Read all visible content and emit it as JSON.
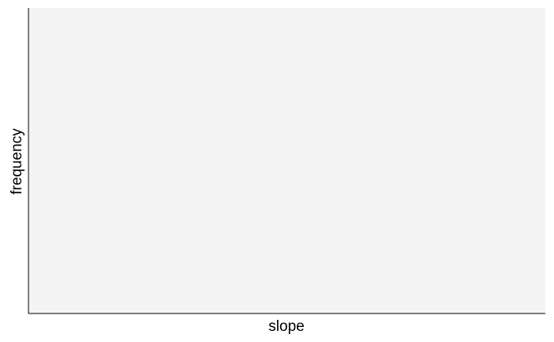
{
  "chart_data": {
    "type": "bar",
    "title": "",
    "xlabel": "slope",
    "ylabel": "frequency",
    "categories": [],
    "values": [],
    "grid": false,
    "legend": "none",
    "colors": {
      "panel_background": "#f4f4f4",
      "axis_line": "#000000",
      "page_background": "#ffffff"
    }
  }
}
